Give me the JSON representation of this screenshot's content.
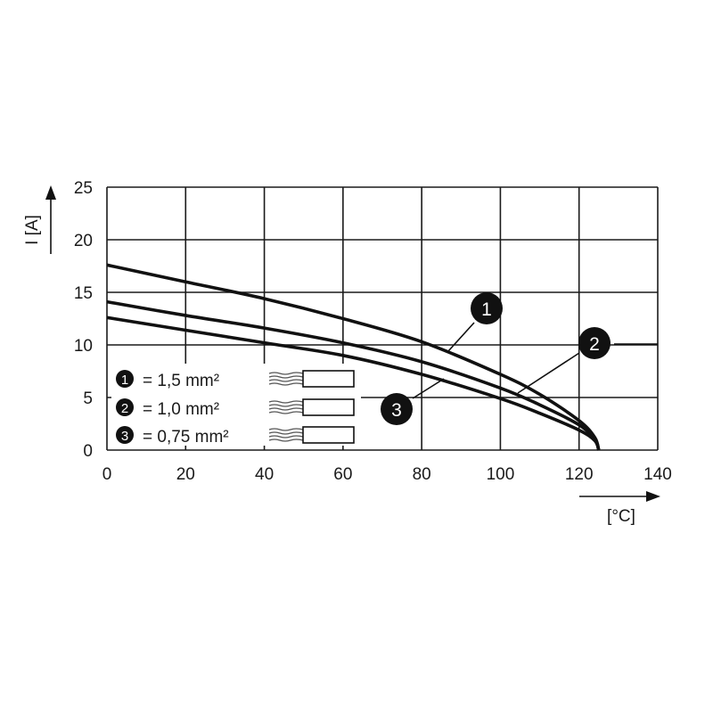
{
  "chart_data": {
    "type": "line",
    "xlabel": "[°C]",
    "ylabel": "I [A]",
    "xlim": [
      0,
      140
    ],
    "ylim": [
      0,
      25
    ],
    "xticks": [
      "0",
      "20",
      "40",
      "60",
      "80",
      "100",
      "120",
      "140"
    ],
    "yticks": [
      "0",
      "5",
      "10",
      "15",
      "20",
      "25"
    ],
    "grid": true,
    "series": [
      {
        "name": "1",
        "x": [
          0,
          20,
          40,
          60,
          80,
          100,
          110,
          120,
          124,
          125
        ],
        "y": [
          17.6,
          16.0,
          14.4,
          12.5,
          10.3,
          7.2,
          5.3,
          2.8,
          1.2,
          0
        ]
      },
      {
        "name": "2",
        "x": [
          0,
          20,
          40,
          60,
          80,
          100,
          110,
          120,
          124,
          125
        ],
        "y": [
          14.1,
          12.8,
          11.6,
          10.2,
          8.4,
          5.9,
          4.3,
          2.4,
          1.0,
          0
        ]
      },
      {
        "name": "3",
        "x": [
          0,
          20,
          40,
          60,
          80,
          100,
          110,
          120,
          124,
          125
        ],
        "y": [
          12.6,
          11.4,
          10.2,
          9.0,
          7.2,
          4.9,
          3.5,
          1.9,
          0.9,
          0
        ]
      }
    ],
    "legend": [
      {
        "marker": "1",
        "label": "= 1,5 mm²"
      },
      {
        "marker": "2",
        "label": "= 1,0 mm²"
      },
      {
        "marker": "3",
        "label": "= 0,75 mm²"
      }
    ],
    "legend_placement": "bottom-left",
    "line_color": "#111111"
  }
}
